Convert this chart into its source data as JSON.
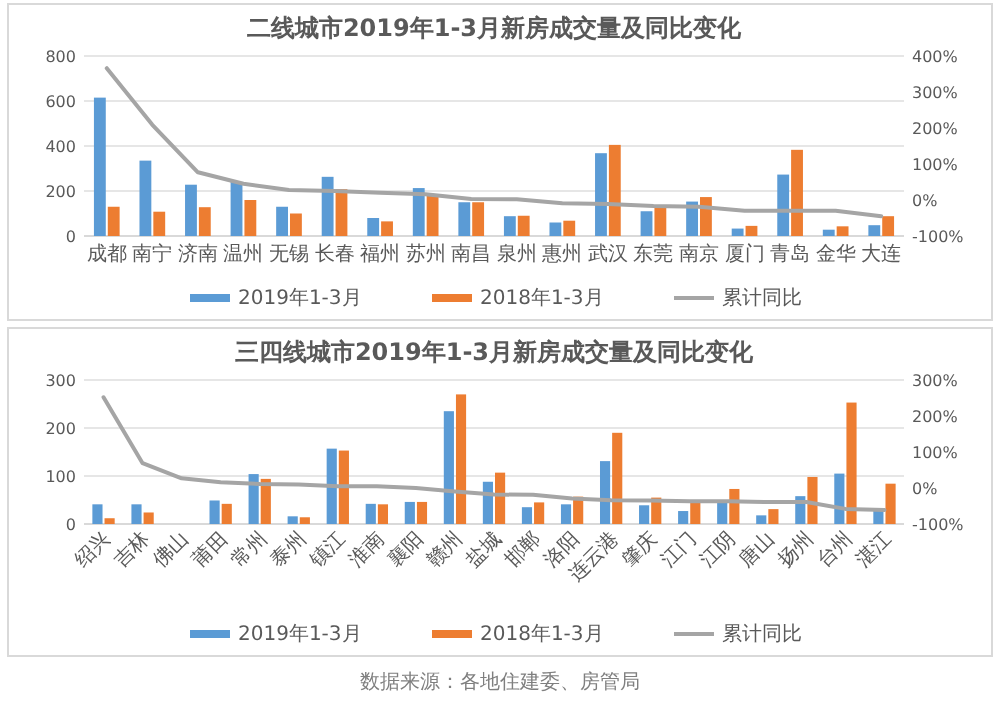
{
  "chart_data": [
    {
      "type": "bar",
      "title": "二线城市2019年1-3月新房成交量及同比变化",
      "categories": [
        "成都",
        "南宁",
        "济南",
        "温州",
        "无锡",
        "长春",
        "福州",
        "苏州",
        "南昌",
        "泉州",
        "惠州",
        "武汉",
        "东莞",
        "南京",
        "厦门",
        "青岛",
        "金华",
        "大连"
      ],
      "series": [
        {
          "name": "2019年1-3月",
          "color": "#5b9bd5",
          "values": [
            615,
            335,
            228,
            240,
            130,
            263,
            80,
            213,
            150,
            88,
            60,
            368,
            110,
            153,
            33,
            273,
            28,
            48
          ]
        },
        {
          "name": "2018年1-3月",
          "color": "#ed7d31",
          "values": [
            130,
            108,
            128,
            160,
            100,
            208,
            65,
            183,
            150,
            90,
            68,
            405,
            128,
            173,
            45,
            383,
            43,
            88
          ]
        },
        {
          "name": "累计同比",
          "type": "line",
          "axis": "y2",
          "color": "#a5a5a5",
          "values": [
            366,
            209,
            77,
            45,
            28,
            25,
            20,
            16,
            3,
            2,
            -9,
            -11,
            -17,
            -19,
            -30,
            -30,
            -30,
            -45
          ]
        }
      ],
      "ylim": [
        0,
        800
      ],
      "yticks": [
        0,
        200,
        400,
        600,
        800
      ],
      "y2lim": [
        -100,
        400
      ],
      "y2ticks": [
        {
          "value": -100,
          "label": "-100%"
        },
        {
          "value": 0,
          "label": "0%"
        },
        {
          "value": 100,
          "label": "100%"
        },
        {
          "value": 200,
          "label": "200%"
        },
        {
          "value": 300,
          "label": "300%"
        },
        {
          "value": 400,
          "label": "400%"
        }
      ],
      "grid": "y",
      "legend": "bottom"
    },
    {
      "type": "bar",
      "title": "三四线城市2019年1-3月新房成交量及同比变化",
      "categories": [
        "绍兴",
        "吉林",
        "佛山",
        "莆田",
        "常州",
        "泰州",
        "镇江",
        "淮南",
        "襄阳",
        "赣州",
        "盐城",
        "邯郸",
        "洛阳",
        "连云港",
        "肇庆",
        "江门",
        "江阴",
        "唐山",
        "扬州",
        "台州",
        "湛江"
      ],
      "series": [
        {
          "name": "2019年1-3月",
          "color": "#5b9bd5",
          "values": [
            41,
            41,
            null,
            49,
            104,
            16,
            157,
            42,
            46,
            235,
            88,
            35,
            41,
            131,
            39,
            27,
            46,
            18,
            58,
            105,
            28
          ]
        },
        {
          "name": "2018年1-3月",
          "color": "#ed7d31",
          "values": [
            12,
            24,
            null,
            42,
            94,
            14,
            153,
            41,
            46,
            270,
            107,
            45,
            57,
            190,
            55,
            45,
            73,
            31,
            98,
            253,
            84
          ]
        },
        {
          "name": "累计同比",
          "type": "line",
          "axis": "y2",
          "color": "#a5a5a5",
          "values": [
            252,
            69,
            27,
            16,
            11,
            10,
            5,
            5,
            0,
            -10,
            -18,
            -19,
            -29,
            -34,
            -35,
            -37,
            -37,
            -39,
            -39,
            -58,
            -61
          ]
        }
      ],
      "ylim": [
        0,
        300
      ],
      "yticks": [
        0,
        100,
        200,
        300
      ],
      "y2lim": [
        -100,
        300
      ],
      "y2ticks": [
        {
          "value": -100,
          "label": "-100%"
        },
        {
          "value": 0,
          "label": "0%"
        },
        {
          "value": 100,
          "label": "100%"
        },
        {
          "value": 200,
          "label": "200%"
        },
        {
          "value": 300,
          "label": "300%"
        }
      ],
      "grid": "y",
      "legend": "bottom",
      "annotations": [
        "数据来源：各地住建委、房管局"
      ]
    }
  ]
}
